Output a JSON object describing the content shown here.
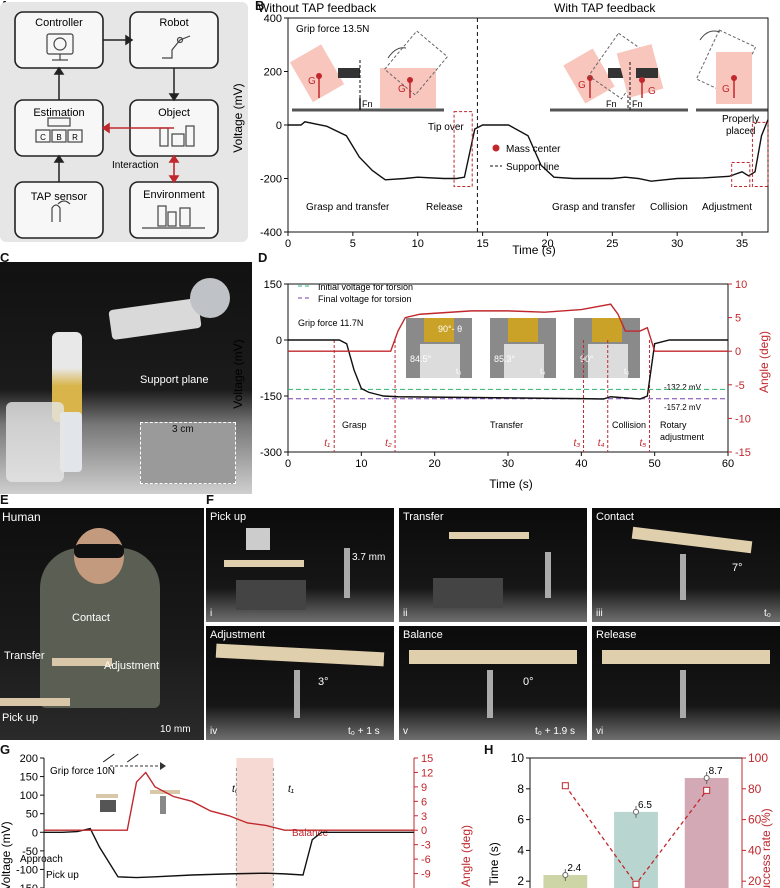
{
  "panels": {
    "A": "A",
    "B": "B",
    "C": "C",
    "D": "D",
    "E": "E",
    "F": "F",
    "G": "G",
    "H": "H"
  },
  "A": {
    "controller": "Controller",
    "robot": "Robot",
    "estimation": "Estimation",
    "object": "Object",
    "interaction": "Interaction",
    "tap_sensor": "TAP sensor",
    "environment": "Environment",
    "c": "C",
    "b": "B",
    "r": "R"
  },
  "B": {
    "title_left": "Without TAP feedback",
    "title_right": "With TAP feedback",
    "grip": "Grip force 13.5N",
    "ylabel": "Voltage (mV)",
    "xlabel": "Time (s)",
    "tip_over": "Tip over",
    "release": "Release",
    "grasp1": "Grasp and transfer",
    "grasp2": "Grasp and transfer",
    "collision": "Collision",
    "adjustment": "Adjustment",
    "properly": "Properly",
    "placed": "placed",
    "mass_center": "Mass center",
    "support_line": "Support line",
    "g": "G",
    "fn": "Fn"
  },
  "C": {
    "support_plane": "Support plane",
    "cm": "3 cm"
  },
  "D": {
    "legend_initial": "Initial voltage for torsion",
    "legend_final": "Final voltage for torsion",
    "grip": "Grip force 11.7N",
    "ylabel_left": "Voltage (mV)",
    "ylabel_right": "Angle (deg)",
    "xlabel": "Time (s)",
    "v1": "-132.2 mV",
    "v2": "-157.2 mV",
    "grasp": "Grasp",
    "transfer": "Transfer",
    "collision": "Collision",
    "rotary1": "Rotary",
    "rotary2": "adjustment",
    "t1": "t₁",
    "t2": "t₂",
    "t3": "t₃",
    "t4": "t₄",
    "t5": "t₅",
    "inset1_angle": "84.5°",
    "inset1_theta": "90°- θ",
    "inset1_t": "t₃",
    "inset2_angle": "85.3°",
    "inset2_t": "t₄",
    "inset3_angle": "90°",
    "inset3_t": "t₅"
  },
  "E": {
    "human": "Human",
    "contact": "Contact",
    "transfer": "Transfer",
    "adjustment": "Adjustment",
    "pickup": "Pick up",
    "scale": "10 mm"
  },
  "F": {
    "p1_title": "Pick up",
    "p1_num": "i",
    "p1_dim": "3.7 mm",
    "p2_title": "Transfer",
    "p2_num": "ii",
    "p3_title": "Contact",
    "p3_num": "iii",
    "p3_angle": "7°",
    "p3_t": "t₀",
    "p4_title": "Adjustment",
    "p4_num": "iv",
    "p4_angle": "3°",
    "p4_t": "t₀ + 1 s",
    "p5_title": "Balance",
    "p5_num": "v",
    "p5_angle": "0°",
    "p5_t": "t₀ + 1.9 s",
    "p6_title": "Release",
    "p6_num": "vi"
  },
  "G": {
    "grip": "Grip force 10N",
    "ylabel_left": "Voltage (mV)",
    "ylabel_right": "Angle (deg)",
    "approach": "Approach",
    "pickup": "Pick up",
    "balance": "Balance",
    "t0": "t₀",
    "t1": "t₁"
  },
  "H": {
    "ylabel_left": "Time (s)",
    "ylabel_right": "Success rate (%)"
  },
  "chart_data": [
    {
      "id": "B",
      "type": "line",
      "title": "",
      "xlabel": "Time (s)",
      "ylabel": "Voltage (mV)",
      "xlim": [
        0,
        37
      ],
      "ylim": [
        -400,
        400
      ],
      "xticks": [
        0,
        5,
        10,
        15,
        20,
        25,
        30,
        35
      ],
      "yticks": [
        -400,
        -200,
        0,
        200,
        400
      ],
      "series": [
        {
          "values_x": [
            0,
            1,
            1.3,
            3,
            4.5,
            5.5,
            6.5,
            7.5,
            9,
            10,
            12,
            13,
            13.6,
            14.4,
            15,
            17,
            18.5,
            19.5,
            20.5,
            22,
            25,
            26,
            27,
            28,
            30,
            32,
            34,
            35,
            35.5,
            36,
            36.5,
            37
          ],
          "values_y": [
            0,
            0,
            12,
            -5,
            -40,
            -120,
            -170,
            -205,
            -200,
            -195,
            -200,
            -200,
            -195,
            -15,
            0,
            0,
            -40,
            -150,
            -195,
            -200,
            -200,
            -195,
            -200,
            -210,
            -200,
            -198,
            -192,
            -175,
            -190,
            -175,
            -40,
            20
          ]
        }
      ]
    },
    {
      "id": "D",
      "type": "line",
      "title": "",
      "xlabel": "Time (s)",
      "ylabel": "Voltage (mV)",
      "y2label": "Angle (deg)",
      "xlim": [
        0,
        60
      ],
      "ylim": [
        -300,
        150
      ],
      "y2lim": [
        -15,
        10
      ],
      "xticks": [
        0,
        10,
        20,
        30,
        40,
        50,
        60
      ],
      "yticks": [
        -300,
        -150,
        0,
        150
      ],
      "y2ticks": [
        -15,
        -10,
        -5,
        0,
        5,
        10
      ],
      "hlines": [
        {
          "name": "Initial voltage for torsion",
          "y": -132.2,
          "color": "#2bb673"
        },
        {
          "name": "Final voltage for torsion",
          "y": -157.2,
          "color": "#7a3fb5"
        }
      ],
      "series": [
        {
          "axis": "left",
          "color": "#111111",
          "values_x": [
            0,
            7,
            8,
            9,
            10,
            11,
            13,
            15,
            20,
            30,
            40,
            43,
            44,
            46,
            48,
            49,
            50,
            52,
            60
          ],
          "values_y": [
            0,
            0,
            -10,
            -80,
            -130,
            -140,
            -150,
            -152,
            -153,
            -155,
            -157,
            -158,
            -152,
            -155,
            -158,
            -150,
            -10,
            0,
            0
          ]
        },
        {
          "axis": "right",
          "color": "#c0282d",
          "values_x": [
            0,
            14,
            15,
            16,
            18,
            25,
            30,
            35,
            40,
            44,
            45,
            46,
            48,
            49,
            50,
            52,
            60
          ],
          "values_y": [
            0,
            0,
            3,
            5,
            5.5,
            6,
            6,
            5.8,
            6.2,
            7,
            5.5,
            3,
            3,
            3.5,
            0,
            0,
            0
          ]
        }
      ]
    },
    {
      "id": "G",
      "type": "line",
      "title": "",
      "ylabel": "Voltage (mV)",
      "y2label": "Angle (deg)",
      "ylim": [
        -150,
        200
      ],
      "y2lim": [
        -12,
        15
      ],
      "yticks": [
        -150,
        -100,
        -50,
        0,
        50,
        100,
        150,
        200
      ],
      "y2ticks": [
        -9,
        -6,
        -3,
        0,
        3,
        6,
        9,
        12,
        15
      ],
      "series": [
        {
          "axis": "left",
          "color": "#111111",
          "values_x": [
            0,
            1,
            1.8,
            2.5,
            3,
            4,
            5,
            6,
            8,
            10,
            12,
            13,
            14,
            14.5,
            15,
            17,
            20
          ],
          "values_y": [
            0,
            0,
            2,
            10,
            -40,
            -120,
            -122,
            -120,
            -115,
            -112,
            -110,
            -112,
            -115,
            -20,
            0,
            0,
            0
          ]
        },
        {
          "axis": "right",
          "color": "#c0282d",
          "values_x": [
            0,
            1,
            1.5,
            2.5,
            3.5,
            4.5,
            5,
            5.5,
            6,
            7,
            8,
            9,
            10,
            11,
            12,
            13,
            14,
            15,
            20
          ],
          "values_y": [
            0,
            0,
            0,
            0,
            0,
            0,
            10,
            12,
            9,
            7,
            6,
            4,
            3,
            1.5,
            1,
            0,
            0,
            0,
            0
          ]
        }
      ]
    },
    {
      "id": "H",
      "type": "bar",
      "title": "",
      "ylabel": "Time (s)",
      "y2label": "Success rate (%)",
      "ylim": [
        0,
        10
      ],
      "y2lim": [
        0,
        100
      ],
      "yticks": [
        2,
        4,
        6,
        8,
        10
      ],
      "y2ticks": [
        20,
        40,
        60,
        80,
        100
      ],
      "values": [
        2.4,
        6.5,
        8.7
      ],
      "value_labels": [
        "2.4",
        "6.5",
        "8.7"
      ],
      "bar_colors": [
        "#cdd4a6",
        "#b9d5cf",
        "#d3a9b5"
      ],
      "success_rate": [
        82,
        18,
        79
      ]
    }
  ]
}
